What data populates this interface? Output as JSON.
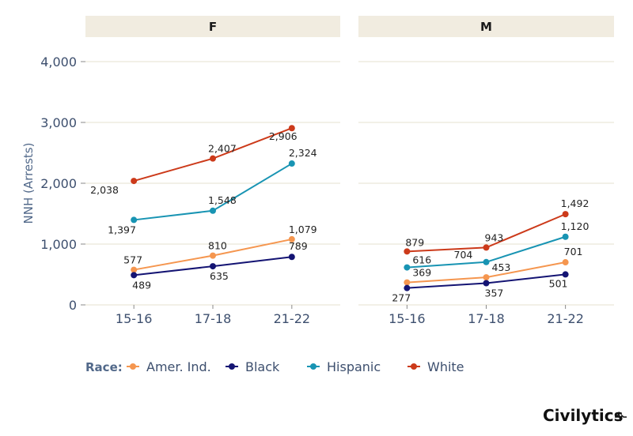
{
  "chart_data": {
    "type": "line",
    "ylabel": "NNH (Arrests)",
    "ylim": [
      0,
      4000
    ],
    "yticks": [
      0,
      1000,
      2000,
      3000,
      4000
    ],
    "ytick_labels": [
      "0",
      "1,000",
      "2,000",
      "3,000",
      "4,000"
    ],
    "categories": [
      "15-16",
      "17-18",
      "21-22"
    ],
    "legend_title": "Race:",
    "legend_position": "bottom",
    "grid": true,
    "panels": [
      {
        "name": "F",
        "series": [
          {
            "name": "Amer. Ind.",
            "color": "#f5964f",
            "values": [
              577,
              810,
              1079
            ],
            "labels": [
              "577",
              "810",
              "1,079"
            ]
          },
          {
            "name": "Black",
            "color": "#141473",
            "values": [
              489,
              635,
              789
            ],
            "labels": [
              "489",
              "635",
              "789"
            ]
          },
          {
            "name": "Hispanic",
            "color": "#1894b3",
            "values": [
              1397,
              1548,
              2324
            ],
            "labels": [
              "1,397",
              "1,548",
              "2,324"
            ]
          },
          {
            "name": "White",
            "color": "#cc3a1a",
            "values": [
              2038,
              2407,
              2906
            ],
            "labels": [
              "2,038",
              "2,407",
              "2,906"
            ]
          }
        ]
      },
      {
        "name": "M",
        "series": [
          {
            "name": "Amer. Ind.",
            "color": "#f5964f",
            "values": [
              369,
              453,
              701
            ],
            "labels": [
              "369",
              "453",
              "701"
            ]
          },
          {
            "name": "Black",
            "color": "#141473",
            "values": [
              277,
              357,
              501
            ],
            "labels": [
              "277",
              "357",
              "501"
            ]
          },
          {
            "name": "Hispanic",
            "color": "#1894b3",
            "values": [
              616,
              704,
              1120
            ],
            "labels": [
              "616",
              "704",
              "1,120"
            ]
          },
          {
            "name": "White",
            "color": "#cc3a1a",
            "values": [
              879,
              943,
              1492
            ],
            "labels": [
              "879",
              "943",
              "1,492"
            ]
          }
        ]
      }
    ]
  },
  "branding": {
    "logo_text": "Civilytics"
  }
}
